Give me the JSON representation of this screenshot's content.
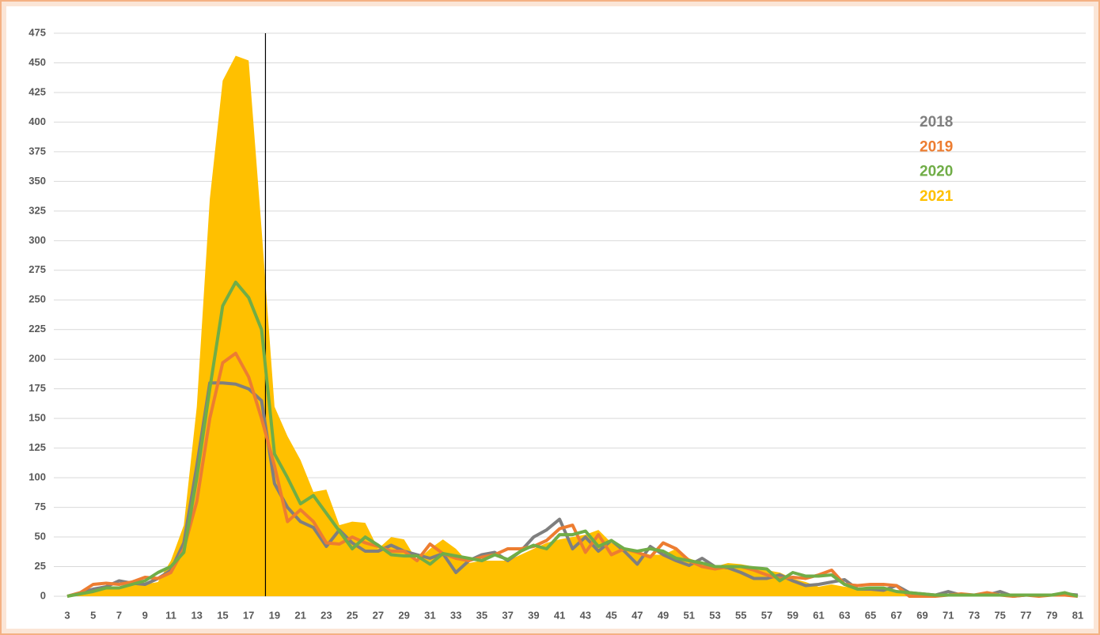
{
  "chart_data": {
    "type": "line",
    "x": [
      3,
      4,
      5,
      6,
      7,
      8,
      9,
      10,
      11,
      12,
      13,
      14,
      15,
      16,
      17,
      18,
      19,
      20,
      21,
      22,
      23,
      24,
      25,
      26,
      27,
      28,
      29,
      30,
      31,
      32,
      33,
      34,
      35,
      36,
      37,
      38,
      39,
      40,
      41,
      42,
      43,
      44,
      45,
      46,
      47,
      48,
      49,
      50,
      51,
      52,
      53,
      54,
      55,
      56,
      57,
      58,
      59,
      60,
      61,
      62,
      63,
      64,
      65,
      66,
      67,
      68,
      69,
      70,
      71,
      72,
      73,
      74,
      75,
      76,
      77,
      78,
      79,
      80,
      81
    ],
    "series": [
      {
        "name": "2018",
        "color": "#7f7f7f",
        "type": "line",
        "values": [
          0,
          3,
          6,
          8,
          13,
          11,
          10,
          15,
          22,
          45,
          110,
          180,
          180,
          179,
          175,
          165,
          95,
          75,
          63,
          58,
          42,
          56,
          45,
          38,
          38,
          43,
          38,
          35,
          32,
          36,
          20,
          30,
          35,
          37,
          30,
          38,
          50,
          56,
          65,
          40,
          50,
          38,
          47,
          38,
          27,
          42,
          35,
          30,
          26,
          32,
          25,
          24,
          20,
          15,
          15,
          18,
          13,
          9,
          10,
          12,
          14,
          6,
          6,
          5,
          9,
          3,
          2,
          1,
          4,
          1,
          1,
          1,
          4,
          0,
          1,
          1,
          1,
          2,
          1
        ]
      },
      {
        "name": "2019",
        "color": "#ed7d31",
        "type": "line",
        "values": [
          0,
          3,
          10,
          11,
          10,
          12,
          16,
          15,
          20,
          40,
          80,
          150,
          197,
          205,
          185,
          150,
          110,
          63,
          73,
          63,
          45,
          44,
          50,
          45,
          42,
          38,
          38,
          30,
          44,
          36,
          32,
          30,
          33,
          35,
          40,
          40,
          42,
          47,
          57,
          60,
          37,
          52,
          35,
          40,
          37,
          33,
          45,
          40,
          30,
          25,
          23,
          25,
          25,
          22,
          18,
          15,
          16,
          15,
          18,
          22,
          10,
          9,
          10,
          10,
          9,
          0,
          0,
          0,
          1,
          2,
          1,
          3,
          1,
          0,
          1,
          0,
          1,
          1,
          0
        ]
      },
      {
        "name": "2020",
        "color": "#70ad47",
        "type": "line",
        "values": [
          0,
          2,
          4,
          7,
          7,
          10,
          13,
          20,
          25,
          37,
          100,
          175,
          245,
          265,
          252,
          225,
          120,
          100,
          78,
          85,
          70,
          55,
          40,
          50,
          43,
          35,
          34,
          34,
          27,
          36,
          34,
          32,
          30,
          35,
          31,
          38,
          43,
          40,
          52,
          52,
          55,
          42,
          47,
          40,
          38,
          40,
          38,
          32,
          30,
          28,
          25,
          25,
          25,
          24,
          23,
          13,
          20,
          17,
          17,
          18,
          10,
          6,
          7,
          7,
          4,
          3,
          2,
          1,
          1,
          1,
          1,
          1,
          1,
          1,
          1,
          1,
          1,
          3,
          0
        ]
      },
      {
        "name": "2021",
        "color": "#ffc000",
        "type": "area",
        "values": [
          0,
          3,
          5,
          8,
          8,
          10,
          10,
          12,
          30,
          60,
          160,
          335,
          435,
          456,
          452,
          310,
          160,
          135,
          115,
          88,
          90,
          60,
          63,
          62,
          40,
          50,
          48,
          30,
          40,
          48,
          40,
          28,
          30,
          30,
          30,
          35,
          40,
          45,
          48,
          50,
          52,
          56,
          45,
          40,
          38,
          35,
          35,
          40,
          32,
          28,
          25,
          28,
          27,
          25,
          22,
          20,
          15,
          12,
          8,
          10,
          8,
          7,
          7,
          6,
          4,
          3,
          2,
          1,
          1,
          1,
          1,
          1,
          1,
          1,
          1,
          1,
          1,
          1,
          0
        ]
      }
    ],
    "draw_order": [
      "2021",
      "2018",
      "2019",
      "2020"
    ],
    "reference_line_x": 18.3,
    "xlim": [
      2,
      82
    ],
    "xticks": [
      3,
      5,
      7,
      9,
      11,
      13,
      15,
      17,
      19,
      21,
      23,
      25,
      27,
      29,
      31,
      33,
      35,
      37,
      39,
      41,
      43,
      45,
      47,
      49,
      51,
      53,
      55,
      57,
      59,
      61,
      63,
      65,
      67,
      69,
      71,
      73,
      75,
      77,
      79,
      81
    ],
    "ylim": [
      0,
      475
    ],
    "yticks": [
      0,
      25,
      50,
      75,
      100,
      125,
      150,
      175,
      200,
      225,
      250,
      275,
      300,
      325,
      350,
      375,
      400,
      425,
      450,
      475
    ],
    "grid": true,
    "legend": "right"
  }
}
